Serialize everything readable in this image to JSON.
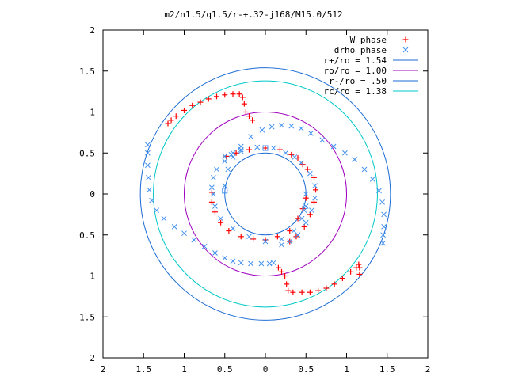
{
  "chart_data": {
    "type": "scatter",
    "title": "m2/n1.5/q1.5/r-+.32-j168/M15.0/512",
    "xlabel": "",
    "ylabel": "",
    "xlim": [
      -2,
      2
    ],
    "ylim": [
      -2,
      2
    ],
    "x_tick_values": [
      -2,
      -1.5,
      -1,
      -0.5,
      0,
      0.5,
      1,
      1.5,
      2
    ],
    "x_tick_labels": [
      "2",
      "1.5",
      "1",
      "0.5",
      "0",
      "0.5",
      "1",
      "1.5",
      "2"
    ],
    "y_tick_values": [
      2,
      1.5,
      1,
      0.5,
      0,
      -0.5,
      -1,
      -1.5,
      -2
    ],
    "y_tick_labels": [
      "2",
      "1.5",
      "1",
      "0.5",
      "0",
      "0.5",
      "1",
      "1.5",
      "2"
    ],
    "grid": false,
    "legend_position": "top-right",
    "colors": {
      "w_phase": "#ff0000",
      "drho_phase": "#3f8fef",
      "r_plus": "#1a6bd6",
      "ro": "#a000c0",
      "r_minus": "#1a6bd6",
      "rc": "#00c8c8"
    },
    "circles": [
      {
        "name": "r+/ro = 1.54",
        "radius": 1.54,
        "color_key": "r_plus"
      },
      {
        "name": "ro/ro = 1.00",
        "radius": 1.0,
        "color_key": "ro"
      },
      {
        "name": "r-/ro = .50",
        "radius": 0.5,
        "color_key": "r_minus"
      },
      {
        "name": "rc/ro = 1.38",
        "radius": 1.38,
        "color_key": "rc"
      }
    ],
    "series": [
      {
        "name": "W phase",
        "marker": "plus",
        "color_key": "w_phase",
        "points": [
          [
            -1.2,
            0.86
          ],
          [
            -1.16,
            0.9
          ],
          [
            -1.1,
            0.95
          ],
          [
            -1.0,
            1.02
          ],
          [
            -0.9,
            1.08
          ],
          [
            -0.8,
            1.12
          ],
          [
            -0.7,
            1.16
          ],
          [
            -0.6,
            1.19
          ],
          [
            -0.5,
            1.21
          ],
          [
            -0.4,
            1.22
          ],
          [
            -0.32,
            1.22
          ],
          [
            -0.28,
            1.18
          ],
          [
            -0.26,
            1.1
          ],
          [
            -0.24,
            1.0
          ],
          [
            -0.2,
            0.95
          ],
          [
            -0.16,
            0.9
          ],
          [
            -0.48,
            0.46
          ],
          [
            -0.36,
            0.5
          ],
          [
            -0.2,
            0.54
          ],
          [
            0.0,
            0.56
          ],
          [
            0.18,
            0.54
          ],
          [
            0.32,
            0.48
          ],
          [
            0.4,
            0.44
          ],
          [
            0.46,
            0.36
          ],
          [
            0.52,
            0.3
          ],
          [
            0.6,
            0.2
          ],
          [
            0.62,
            0.05
          ],
          [
            0.6,
            -0.1
          ],
          [
            0.55,
            -0.25
          ],
          [
            0.48,
            -0.4
          ],
          [
            0.38,
            -0.52
          ],
          [
            0.3,
            -0.58
          ],
          [
            -0.66,
            0.02
          ],
          [
            -0.66,
            -0.1
          ],
          [
            -0.62,
            -0.22
          ],
          [
            -0.55,
            -0.35
          ],
          [
            -0.45,
            -0.45
          ],
          [
            -0.3,
            -0.52
          ],
          [
            -0.15,
            -0.55
          ],
          [
            0.0,
            -0.56
          ],
          [
            0.15,
            -0.52
          ],
          [
            0.3,
            -0.45
          ],
          [
            0.4,
            -0.3
          ],
          [
            0.46,
            -0.18
          ],
          [
            0.5,
            -0.05
          ],
          [
            0.16,
            -0.9
          ],
          [
            0.2,
            -0.95
          ],
          [
            0.24,
            -1.0
          ],
          [
            0.26,
            -1.1
          ],
          [
            0.28,
            -1.18
          ],
          [
            0.34,
            -1.2
          ],
          [
            0.45,
            -1.2
          ],
          [
            0.55,
            -1.2
          ],
          [
            0.65,
            -1.18
          ],
          [
            0.75,
            -1.15
          ],
          [
            0.85,
            -1.1
          ],
          [
            0.95,
            -1.03
          ],
          [
            1.05,
            -0.95
          ],
          [
            1.12,
            -0.9
          ],
          [
            1.15,
            -0.86
          ],
          [
            1.16,
            -0.9
          ],
          [
            1.16,
            -0.98
          ]
        ]
      },
      {
        "name": "drho phase",
        "marker": "cross",
        "color_key": "drho_phase",
        "points": [
          [
            -1.45,
            0.6
          ],
          [
            -1.45,
            0.5
          ],
          [
            -1.45,
            0.35
          ],
          [
            -1.44,
            0.2
          ],
          [
            -1.43,
            0.05
          ],
          [
            -1.4,
            -0.08
          ],
          [
            -1.34,
            -0.2
          ],
          [
            -1.25,
            -0.3
          ],
          [
            -1.12,
            -0.4
          ],
          [
            -1.0,
            -0.48
          ],
          [
            -0.88,
            -0.56
          ],
          [
            -0.75,
            -0.64
          ],
          [
            -0.62,
            -0.72
          ],
          [
            -0.5,
            -0.78
          ],
          [
            -0.4,
            -0.82
          ],
          [
            -0.3,
            -0.84
          ],
          [
            -0.18,
            -0.85
          ],
          [
            -0.05,
            -0.85
          ],
          [
            0.05,
            -0.85
          ],
          [
            0.1,
            -0.84
          ],
          [
            -0.5,
            0.1
          ],
          [
            -0.46,
            0.3
          ],
          [
            -0.4,
            0.45
          ],
          [
            -0.3,
            0.58
          ],
          [
            -0.18,
            0.7
          ],
          [
            -0.04,
            0.78
          ],
          [
            0.08,
            0.82
          ],
          [
            0.2,
            0.84
          ],
          [
            0.32,
            0.83
          ],
          [
            0.44,
            0.8
          ],
          [
            0.56,
            0.74
          ],
          [
            0.7,
            0.66
          ],
          [
            0.84,
            0.58
          ],
          [
            0.98,
            0.5
          ],
          [
            1.1,
            0.42
          ],
          [
            1.22,
            0.3
          ],
          [
            1.32,
            0.18
          ],
          [
            1.4,
            0.04
          ],
          [
            1.44,
            -0.1
          ],
          [
            1.46,
            -0.25
          ],
          [
            1.46,
            -0.4
          ],
          [
            1.45,
            -0.5
          ],
          [
            1.45,
            -0.6
          ],
          [
            -0.66,
            0.08
          ],
          [
            -0.64,
            0.2
          ],
          [
            -0.6,
            0.3
          ],
          [
            -0.5,
            0.4
          ],
          [
            -0.4,
            0.5
          ],
          [
            -0.3,
            0.52
          ],
          [
            -0.5,
            0.46
          ],
          [
            -0.42,
            0.48
          ],
          [
            -0.3,
            0.54
          ],
          [
            -0.1,
            0.57
          ],
          [
            0.1,
            0.56
          ],
          [
            0.25,
            0.5
          ],
          [
            0.36,
            0.45
          ],
          [
            0.44,
            0.38
          ],
          [
            0.55,
            0.25
          ],
          [
            0.61,
            0.1
          ],
          [
            0.61,
            -0.05
          ],
          [
            0.57,
            -0.2
          ],
          [
            0.5,
            -0.35
          ],
          [
            0.4,
            -0.5
          ],
          [
            0.3,
            -0.58
          ],
          [
            0.2,
            -0.62
          ],
          [
            0.5,
            -0.15
          ],
          [
            0.45,
            -0.3
          ],
          [
            0.35,
            -0.45
          ],
          [
            0.2,
            -0.55
          ],
          [
            0.0,
            -0.58
          ],
          [
            -0.2,
            -0.52
          ],
          [
            -0.4,
            -0.42
          ],
          [
            -0.55,
            -0.3
          ],
          [
            -0.62,
            -0.15
          ],
          [
            -0.64,
            0.0
          ],
          [
            0.5,
            0.0
          ],
          [
            0.48,
            -0.2
          ]
        ]
      }
    ],
    "extra_markers": [
      {
        "marker": "square",
        "color_key": "drho_phase",
        "points": [
          [
            -0.5,
            0.04
          ],
          [
            0.0,
            0.56
          ]
        ]
      }
    ]
  }
}
